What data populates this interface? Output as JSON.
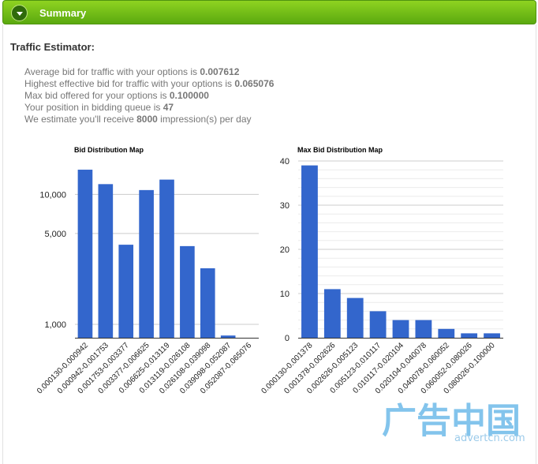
{
  "header": {
    "title": "Summary"
  },
  "estimator": {
    "title": "Traffic Estimator:",
    "line1_text": "Average bid for traffic with your options is ",
    "line1_value": "0.007612",
    "line2_text": "Highest effective bid for traffic with your options is ",
    "line2_value": "0.065076",
    "line3_text": "Max bid offered for your options is ",
    "line3_value": "0.100000",
    "line4_text": "Your position in bidding queue is ",
    "line4_value": "47",
    "line5_prefix": "We estimate you'll receive ",
    "line5_value": "8000",
    "line5_suffix": " impression(s) per day"
  },
  "colors": {
    "bar": "#3366cc",
    "header_green": "#6dbb14",
    "grid": "#cccccc"
  },
  "watermark": {
    "brand": "广告中国",
    "url": "advertcn.com"
  },
  "chart_data": [
    {
      "type": "bar",
      "title": "Bid Distribution Map",
      "scale": "log",
      "categories": [
        "0.000130-0.000942",
        "0.000942-0.001753",
        "0.001753-0.003377",
        "0.003377-0.006625",
        "0.006625-0.013119",
        "0.013119-0.026108",
        "0.026108-0.039098",
        "0.039098-0.052087",
        "0.052087-0.065076"
      ],
      "values": [
        15500,
        12000,
        4100,
        10800,
        13000,
        4000,
        2700,
        820,
        770
      ],
      "yticks": [
        1000,
        5000,
        10000
      ],
      "ytick_labels": [
        "1,000",
        "5,000",
        "10,000"
      ],
      "grid": true
    },
    {
      "type": "bar",
      "title": "Max Bid Distribution Map",
      "scale": "linear",
      "categories": [
        "0.000130-0.001378",
        "0.001378-0.002626",
        "0.002626-0.005123",
        "0.005123-0.010117",
        "0.010117-0.020104",
        "0.020104-0.040078",
        "0.040078-0.060052",
        "0.060052-0.080026",
        "0.080026-0.100000"
      ],
      "values": [
        39,
        11,
        9,
        6,
        4,
        4,
        2,
        1,
        1
      ],
      "ylim": [
        0,
        40
      ],
      "yticks": [
        0,
        10,
        20,
        30,
        40
      ],
      "grid": true
    }
  ]
}
